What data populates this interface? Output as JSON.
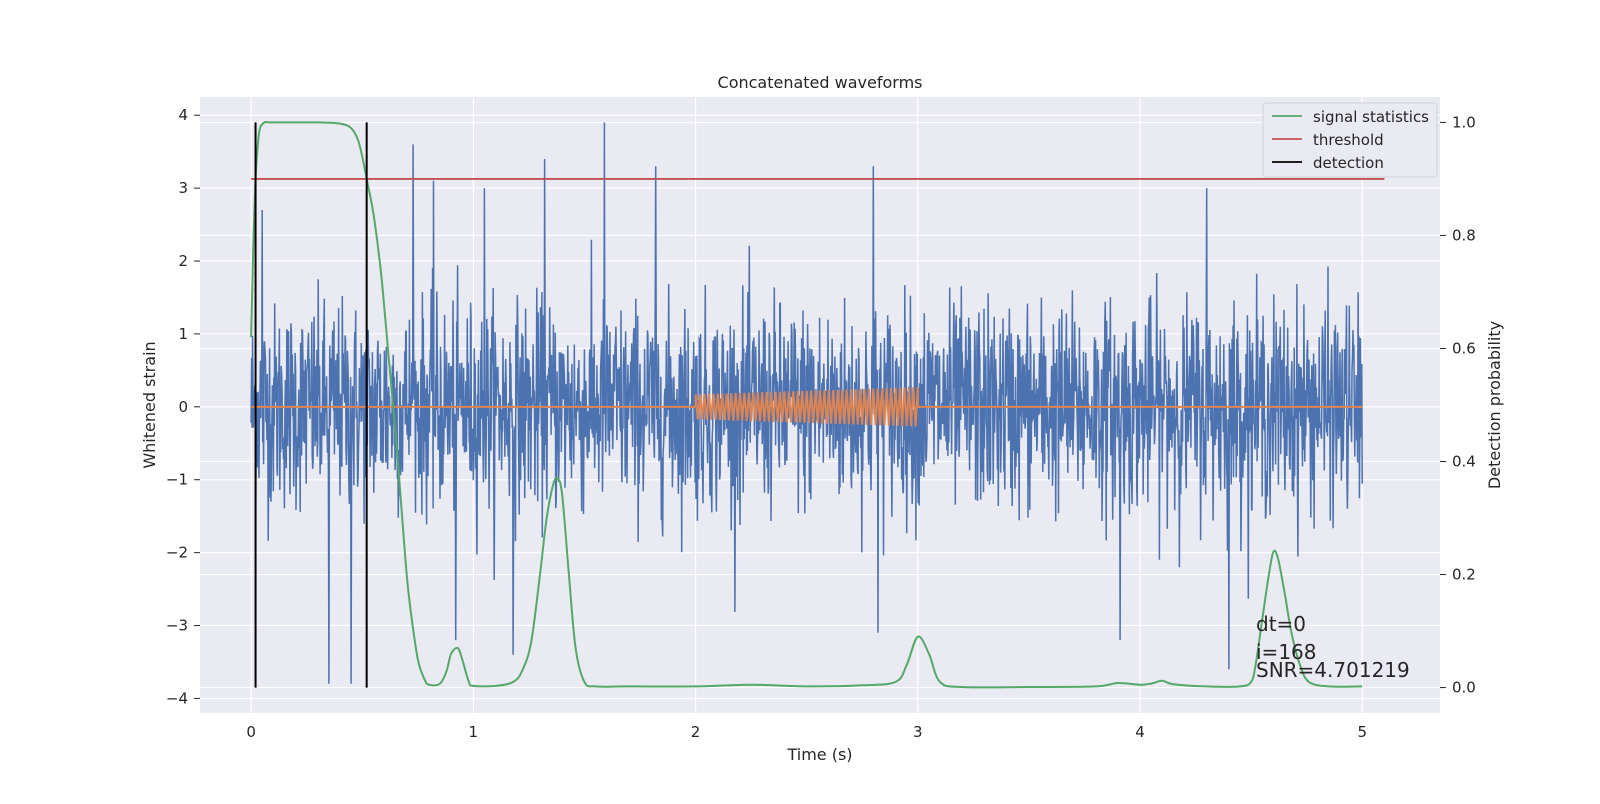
{
  "chart_data": {
    "type": "line",
    "title": "Concatenated waveforms",
    "xlabel": "Time (s)",
    "ylabel": "Whitened strain",
    "y2label": "Detection probability",
    "xlim": [
      -0.23,
      5.35
    ],
    "ylim": [
      -4.2,
      4.25
    ],
    "y2lim": [
      -0.045,
      1.045
    ],
    "x_ticks": [
      0,
      1,
      2,
      3,
      4,
      5
    ],
    "x_tick_labels": [
      "0",
      "1",
      "2",
      "3",
      "4",
      "5"
    ],
    "y_ticks": [
      -4,
      -3,
      -2,
      -1,
      0,
      1,
      2,
      3,
      4
    ],
    "y_tick_labels": [
      "−4",
      "−3",
      "−2",
      "−1",
      "0",
      "1",
      "2",
      "3",
      "4"
    ],
    "y2_ticks": [
      0.0,
      0.2,
      0.4,
      0.6,
      0.8,
      1.0
    ],
    "y2_tick_labels": [
      "0.0",
      "0.2",
      "0.4",
      "0.6",
      "0.8",
      "1.0"
    ],
    "grid": true,
    "legend_position": "top-right",
    "colors": {
      "background": "#eaeaf2",
      "grid": "#ffffff",
      "strain": "#4c72b0",
      "injection": "#dd8452",
      "signal_statistics": "#55a868",
      "threshold": "#c44e52",
      "detection": "#000000"
    },
    "series": [
      {
        "name": "signal statistics",
        "axis": "right",
        "x": [
          0,
          0.01,
          0.02,
          0.03,
          0.04,
          0.06,
          0.08,
          0.1,
          0.2,
          0.3,
          0.4,
          0.45,
          0.48,
          0.5,
          0.52,
          0.55,
          0.58,
          0.6,
          0.62,
          0.65,
          0.68,
          0.7,
          0.72,
          0.75,
          0.78,
          0.8,
          0.85,
          0.88,
          0.9,
          0.93,
          0.95,
          0.98,
          1.0,
          1.1,
          1.18,
          1.22,
          1.26,
          1.3,
          1.33,
          1.36,
          1.38,
          1.4,
          1.43,
          1.46,
          1.5,
          1.55,
          1.7,
          2.0,
          2.25,
          2.5,
          2.75,
          2.9,
          2.95,
          3.0,
          3.05,
          3.1,
          3.2,
          3.5,
          3.8,
          3.9,
          4.0,
          4.05,
          4.1,
          4.15,
          4.3,
          4.45,
          4.5,
          4.52,
          4.55,
          4.58,
          4.6,
          4.62,
          4.65,
          4.68,
          4.72,
          4.76,
          4.85,
          5.0
        ],
        "y": [
          0.62,
          0.78,
          0.9,
          0.96,
          0.99,
          1.0,
          1.0,
          1.0,
          1.0,
          1.0,
          0.998,
          0.99,
          0.97,
          0.94,
          0.9,
          0.84,
          0.75,
          0.67,
          0.58,
          0.45,
          0.3,
          0.2,
          0.13,
          0.05,
          0.015,
          0.005,
          0.007,
          0.03,
          0.06,
          0.07,
          0.05,
          0.01,
          0.003,
          0.003,
          0.01,
          0.03,
          0.08,
          0.2,
          0.3,
          0.36,
          0.37,
          0.34,
          0.2,
          0.07,
          0.01,
          0.002,
          0.002,
          0.002,
          0.005,
          0.002,
          0.004,
          0.01,
          0.04,
          0.09,
          0.06,
          0.01,
          0.001,
          0.001,
          0.002,
          0.008,
          0.005,
          0.007,
          0.012,
          0.006,
          0.002,
          0.002,
          0.01,
          0.04,
          0.12,
          0.2,
          0.24,
          0.23,
          0.17,
          0.1,
          0.04,
          0.01,
          0.002,
          0.002
        ]
      },
      {
        "name": "threshold",
        "axis": "right",
        "x": [
          0,
          5.1
        ],
        "y": [
          0.9,
          0.9
        ]
      },
      {
        "name": "detection",
        "axis": "right",
        "x": [
          0.02,
          0.52
        ],
        "y_range": [
          0,
          1.0
        ]
      }
    ],
    "injection": {
      "x_range": [
        2.0,
        3.0
      ],
      "amplitude_start": 0.17,
      "amplitude_end": 0.27,
      "cycles": 50
    },
    "strain_noise": {
      "x_range": [
        0,
        5.0
      ],
      "sigma": 0.7,
      "peaks": [
        [
          0.05,
          2.7
        ],
        [
          0.35,
          -3.8
        ],
        [
          0.45,
          -3.8
        ],
        [
          0.73,
          3.6
        ],
        [
          0.82,
          3.1
        ],
        [
          0.92,
          -3.2
        ],
        [
          1.05,
          3.0
        ],
        [
          1.18,
          -3.4
        ],
        [
          1.32,
          3.4
        ],
        [
          1.59,
          3.9
        ],
        [
          1.82,
          3.3
        ],
        [
          2.8,
          3.3
        ],
        [
          2.82,
          -3.1
        ],
        [
          3.91,
          -3.2
        ],
        [
          4.3,
          3.0
        ],
        [
          4.4,
          -3.6
        ]
      ]
    }
  },
  "annotations": [
    "dt=0",
    "i=168",
    "SNR=4.701219"
  ]
}
